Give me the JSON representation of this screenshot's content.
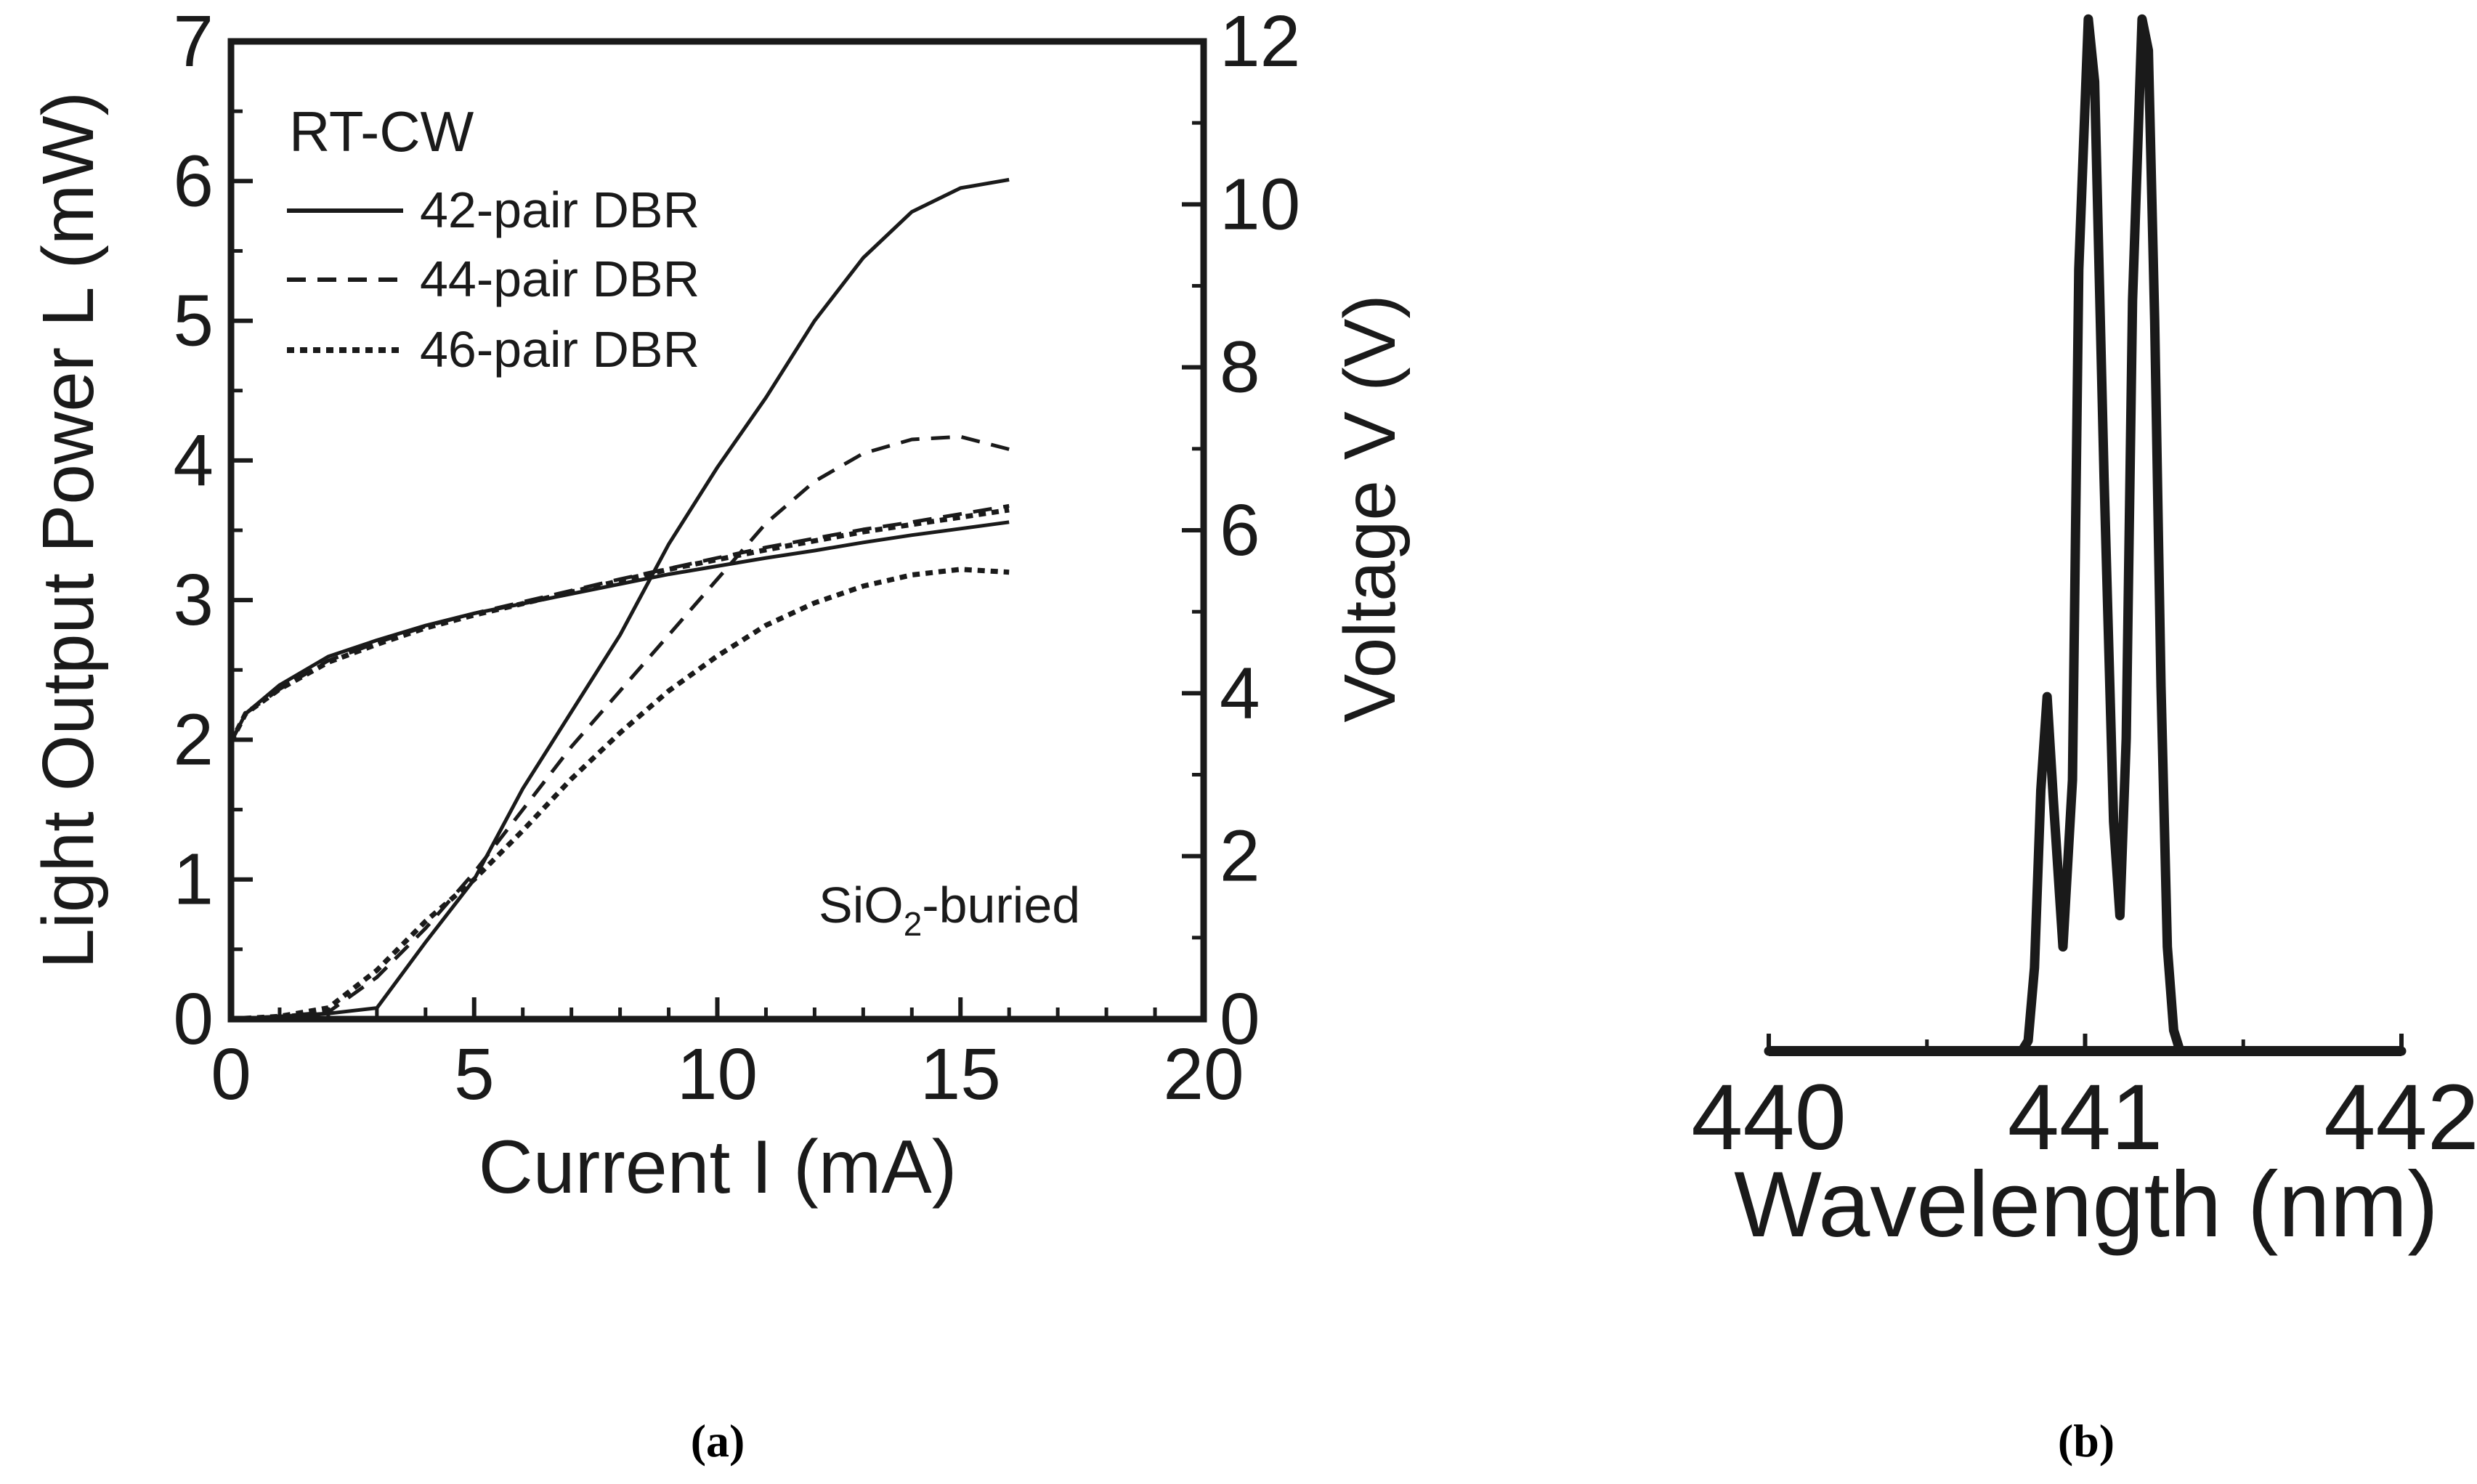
{
  "chart_data": [
    {
      "panel": "(a)",
      "type": "line",
      "xlabel": "Current I (mA)",
      "ylabel": "Light Output Power L (mW)",
      "y2label": "Voltage V (V)",
      "xlim": [
        0,
        20
      ],
      "ylim": [
        0,
        7
      ],
      "y2lim": [
        0,
        12
      ],
      "xticks": [
        "0",
        "5",
        "10",
        "15",
        "20"
      ],
      "yticks": [
        "0",
        "1",
        "2",
        "3",
        "4",
        "5",
        "6",
        "7"
      ],
      "y2ticks": [
        "0",
        "2",
        "4",
        "6",
        "8",
        "10",
        "12"
      ],
      "legend_title": "RT-CW",
      "legend_position": "top-left",
      "annotation": {
        "main": "SiO",
        "sub": "2",
        "rest": "-buried"
      },
      "grid": false,
      "series": [
        {
          "name": "42-pair DBR",
          "style": "solid",
          "axis": "left",
          "quantity": "L",
          "points": [
            [
              0,
              0
            ],
            [
              1,
              0.02
            ],
            [
              2,
              0.04
            ],
            [
              3,
              0.08
            ],
            [
              4,
              0.55
            ],
            [
              5,
              1.0
            ],
            [
              6,
              1.65
            ],
            [
              7,
              2.2
            ],
            [
              8,
              2.75
            ],
            [
              9,
              3.4
            ],
            [
              10,
              3.95
            ],
            [
              11,
              4.45
            ],
            [
              12,
              5.0
            ],
            [
              13,
              5.45
            ],
            [
              14,
              5.78
            ],
            [
              15,
              5.95
            ],
            [
              16,
              6.01
            ]
          ]
        },
        {
          "name": "44-pair DBR",
          "style": "dashed",
          "axis": "left",
          "quantity": "L",
          "points": [
            [
              0,
              0
            ],
            [
              1,
              0.02
            ],
            [
              2,
              0.05
            ],
            [
              3,
              0.3
            ],
            [
              4,
              0.65
            ],
            [
              5,
              1.05
            ],
            [
              6,
              1.5
            ],
            [
              7,
              1.95
            ],
            [
              8,
              2.35
            ],
            [
              9,
              2.75
            ],
            [
              10,
              3.15
            ],
            [
              11,
              3.55
            ],
            [
              12,
              3.85
            ],
            [
              13,
              4.05
            ],
            [
              14,
              4.15
            ],
            [
              15,
              4.17
            ],
            [
              16,
              4.08
            ]
          ]
        },
        {
          "name": "46-pair DBR",
          "style": "dotted",
          "axis": "left",
          "quantity": "L",
          "points": [
            [
              0,
              0
            ],
            [
              1,
              0.02
            ],
            [
              2,
              0.08
            ],
            [
              3,
              0.35
            ],
            [
              4,
              0.7
            ],
            [
              5,
              1.0
            ],
            [
              6,
              1.35
            ],
            [
              7,
              1.72
            ],
            [
              8,
              2.05
            ],
            [
              9,
              2.35
            ],
            [
              10,
              2.6
            ],
            [
              11,
              2.82
            ],
            [
              12,
              2.98
            ],
            [
              13,
              3.1
            ],
            [
              14,
              3.18
            ],
            [
              15,
              3.22
            ],
            [
              16,
              3.2
            ]
          ]
        },
        {
          "name": "42-pair DBR",
          "style": "solid",
          "axis": "right",
          "quantity": "V",
          "points": [
            [
              0,
              3.4
            ],
            [
              0.3,
              3.75
            ],
            [
              1,
              4.1
            ],
            [
              2,
              4.45
            ],
            [
              3,
              4.65
            ],
            [
              4,
              4.83
            ],
            [
              5,
              4.98
            ],
            [
              6,
              5.1
            ],
            [
              7,
              5.22
            ],
            [
              8,
              5.34
            ],
            [
              9,
              5.46
            ],
            [
              10,
              5.56
            ],
            [
              11,
              5.66
            ],
            [
              12,
              5.75
            ],
            [
              13,
              5.85
            ],
            [
              14,
              5.94
            ],
            [
              15,
              6.02
            ],
            [
              16,
              6.1
            ]
          ]
        },
        {
          "name": "44-pair DBR",
          "style": "dashed",
          "axis": "right",
          "quantity": "V",
          "points": [
            [
              0,
              3.4
            ],
            [
              0.3,
              3.75
            ],
            [
              1,
              4.05
            ],
            [
              2,
              4.4
            ],
            [
              3,
              4.62
            ],
            [
              4,
              4.82
            ],
            [
              5,
              4.98
            ],
            [
              6,
              5.12
            ],
            [
              7,
              5.26
            ],
            [
              8,
              5.4
            ],
            [
              9,
              5.53
            ],
            [
              10,
              5.66
            ],
            [
              11,
              5.79
            ],
            [
              12,
              5.9
            ],
            [
              13,
              6.01
            ],
            [
              14,
              6.1
            ],
            [
              15,
              6.2
            ],
            [
              16,
              6.3
            ]
          ]
        },
        {
          "name": "46-pair DBR",
          "style": "dotted",
          "axis": "right",
          "quantity": "V",
          "points": [
            [
              0,
              3.4
            ],
            [
              0.3,
              3.75
            ],
            [
              1,
              4.05
            ],
            [
              2,
              4.38
            ],
            [
              3,
              4.6
            ],
            [
              4,
              4.8
            ],
            [
              5,
              4.96
            ],
            [
              6,
              5.1
            ],
            [
              7,
              5.24
            ],
            [
              8,
              5.38
            ],
            [
              9,
              5.52
            ],
            [
              10,
              5.64
            ],
            [
              11,
              5.76
            ],
            [
              12,
              5.87
            ],
            [
              13,
              5.98
            ],
            [
              14,
              6.07
            ],
            [
              15,
              6.16
            ],
            [
              16,
              6.25
            ]
          ]
        }
      ]
    },
    {
      "panel": "(b)",
      "type": "line",
      "xlabel": "Wavelength (nm)",
      "xlim": [
        440,
        442
      ],
      "ylim": [
        0,
        1
      ],
      "xticks": [
        "440",
        "441",
        "442"
      ],
      "minor_xticks": [
        440.5,
        441.5
      ],
      "grid": false,
      "series": [
        {
          "style": "thick-solid",
          "points": [
            [
              440,
              0
            ],
            [
              440.8,
              0
            ],
            [
              440.82,
              0.01
            ],
            [
              440.84,
              0.08
            ],
            [
              440.86,
              0.25
            ],
            [
              440.88,
              0.34
            ],
            [
              440.9,
              0.24
            ],
            [
              440.93,
              0.1
            ],
            [
              440.96,
              0.26
            ],
            [
              440.98,
              0.75
            ],
            [
              441.01,
              0.99
            ],
            [
              441.03,
              0.93
            ],
            [
              441.06,
              0.55
            ],
            [
              441.09,
              0.22
            ],
            [
              441.11,
              0.13
            ],
            [
              441.13,
              0.3
            ],
            [
              441.15,
              0.72
            ],
            [
              441.18,
              0.99
            ],
            [
              441.2,
              0.96
            ],
            [
              441.22,
              0.7
            ],
            [
              441.24,
              0.35
            ],
            [
              441.26,
              0.1
            ],
            [
              441.28,
              0.02
            ],
            [
              441.3,
              0
            ],
            [
              442,
              0
            ]
          ]
        }
      ]
    }
  ],
  "panel_labels": {
    "a": "(a)",
    "b": "(b)"
  }
}
